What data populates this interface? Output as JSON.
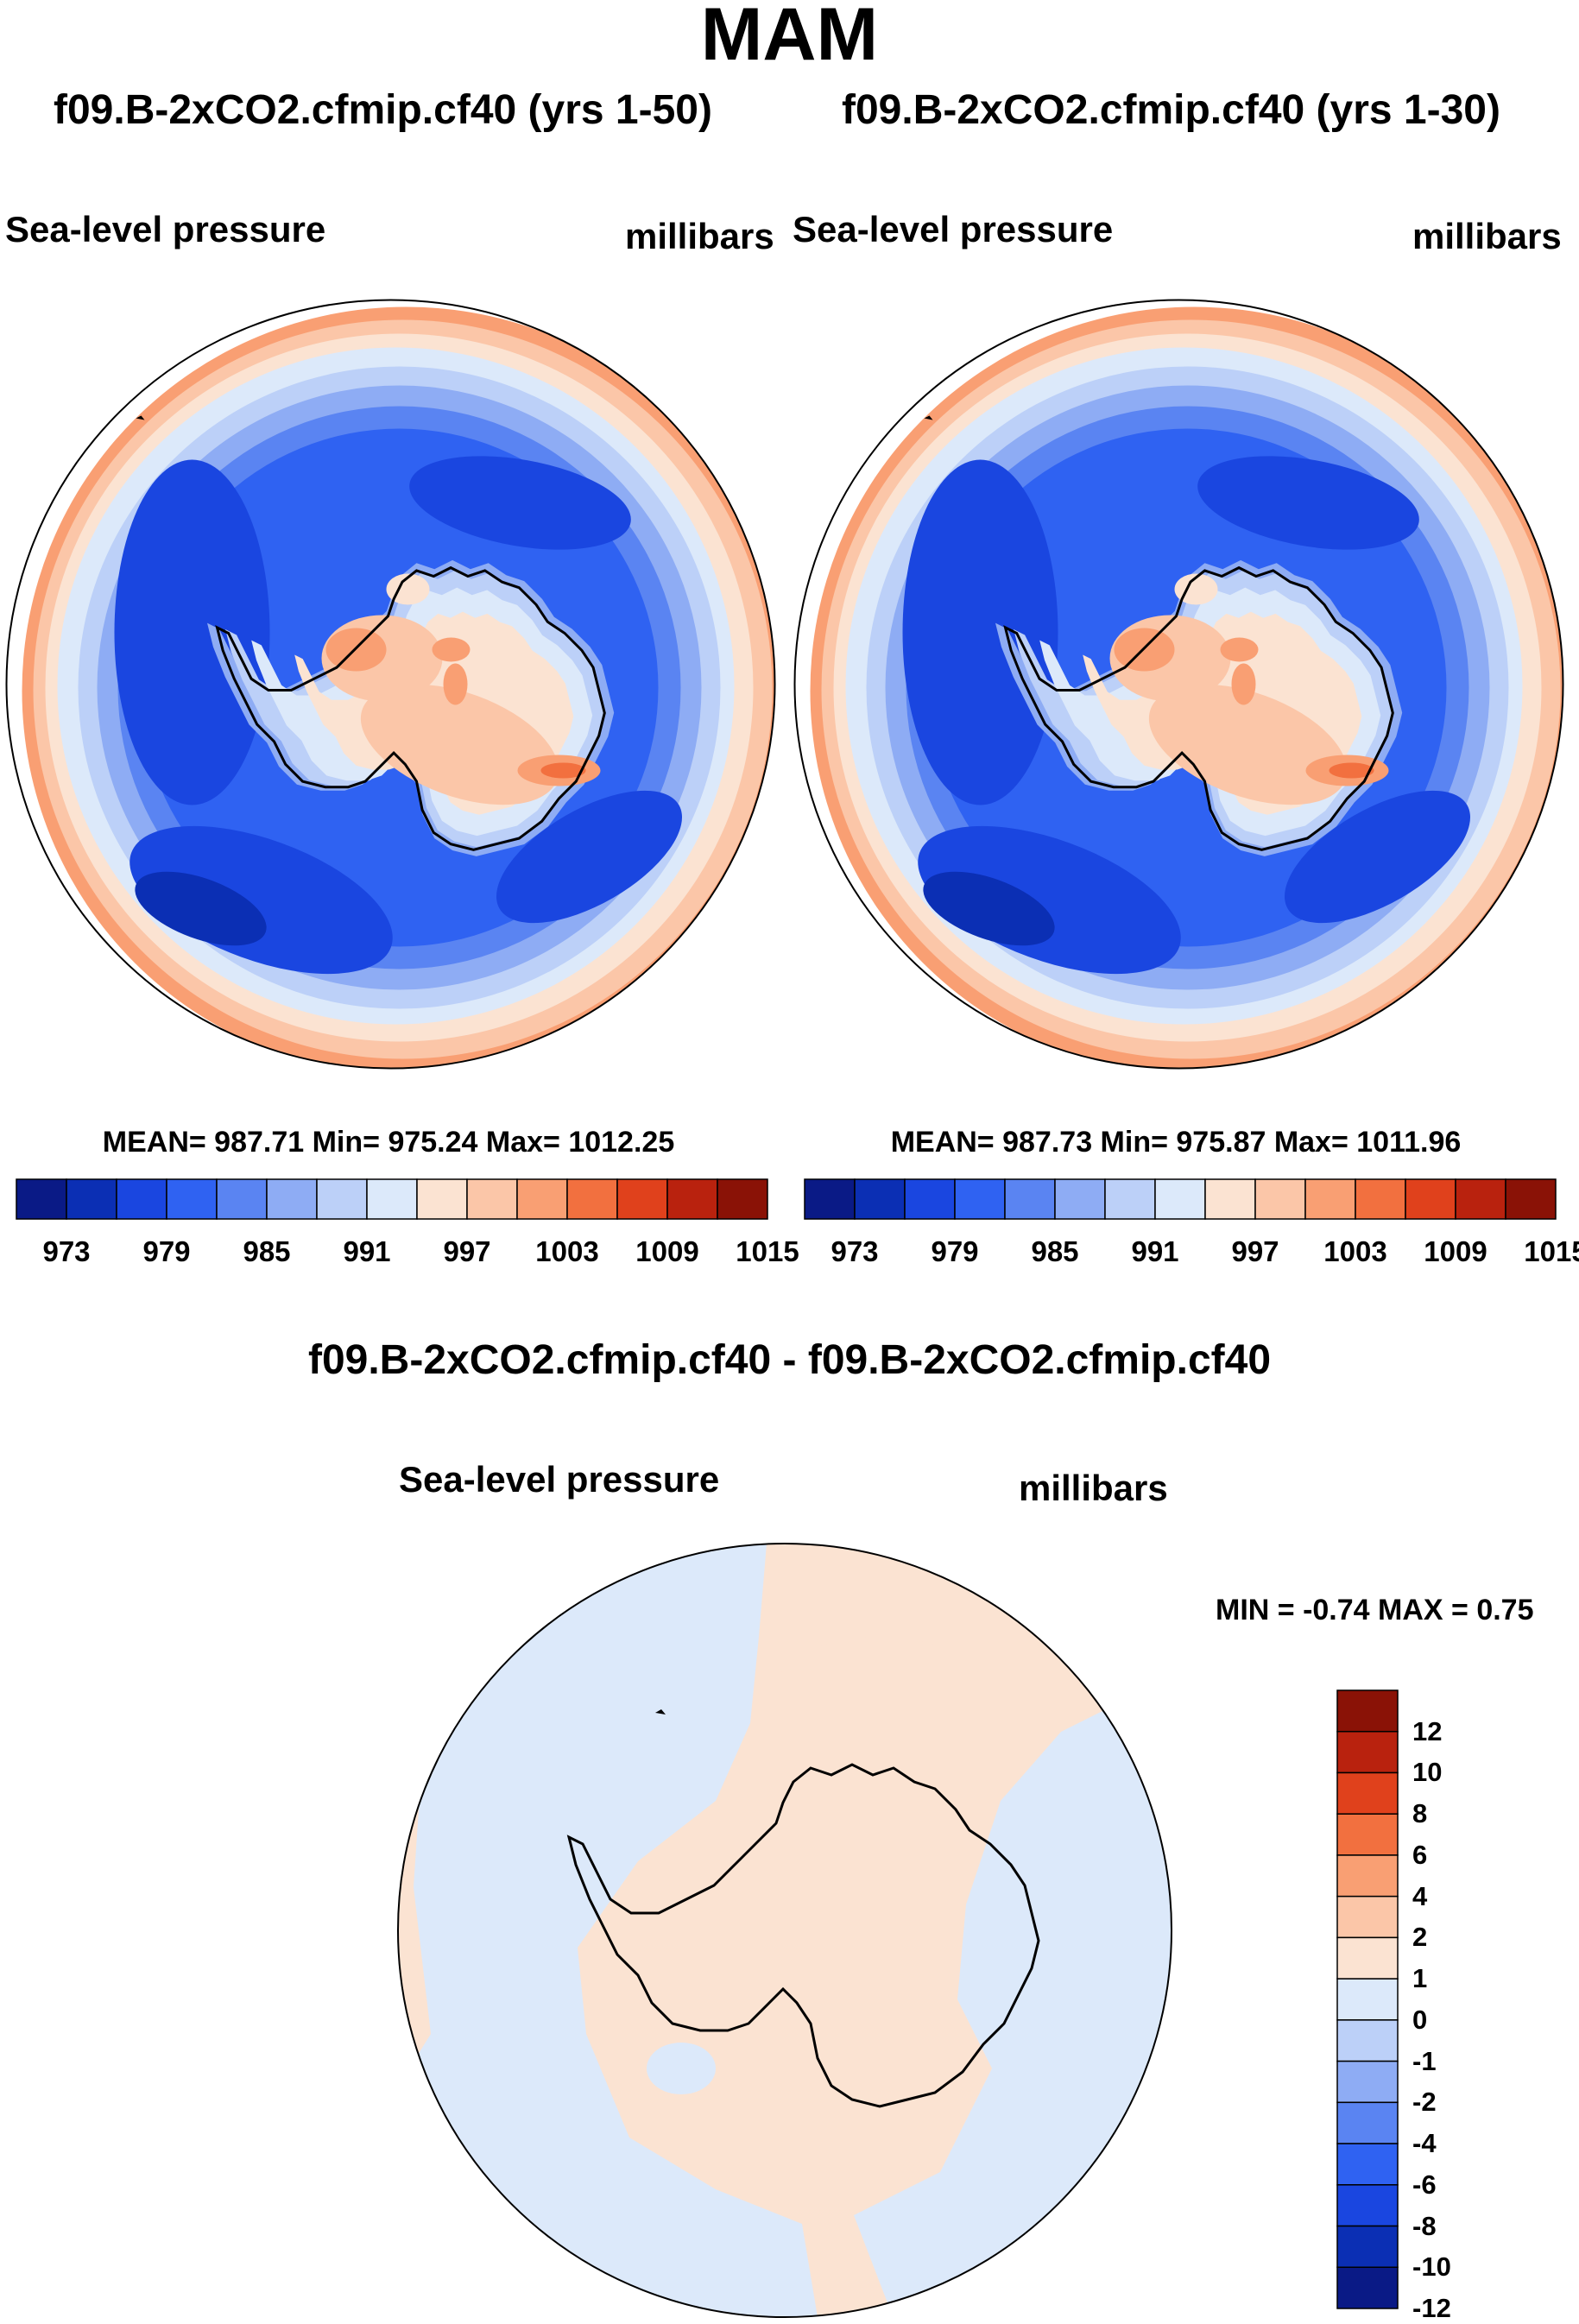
{
  "figure": {
    "title": "MAM"
  },
  "palette": {
    "abs_colors": [
      "#0a1a86",
      "#0b2fb4",
      "#1a46e0",
      "#2f62f2",
      "#5a84f2",
      "#8eacf4",
      "#bcd0f8",
      "#dce9fa",
      "#fbe3d2",
      "#fbc6a8",
      "#f99f73",
      "#f2703f",
      "#e0411c",
      "#b9220e",
      "#8a1206"
    ],
    "diff_colors": [
      "#0a1a86",
      "#0b2fb4",
      "#1a46e0",
      "#2f62f2",
      "#5a84f2",
      "#8eacf4",
      "#bcd0f8",
      "#dce9fa",
      "#fbe3d2",
      "#fbc6a8",
      "#f99f73",
      "#f2703f",
      "#e0411c",
      "#b9220e",
      "#8a1206"
    ],
    "coast": "#000000"
  },
  "panels": {
    "left": {
      "case_title": "f09.B-2xCO2.cfmip.cf40 (yrs 1-50)",
      "variable": "Sea-level pressure",
      "units": "millibars",
      "stats": "MEAN= 987.71  Min= 975.24  Max= 1012.25"
    },
    "right": {
      "case_title": "f09.B-2xCO2.cfmip.cf40 (yrs 1-30)",
      "variable": "Sea-level pressure",
      "units": "millibars",
      "stats": "MEAN= 987.73  Min= 975.87  Max= 1011.96"
    },
    "diff": {
      "case_title": "f09.B-2xCO2.cfmip.cf40 - f09.B-2xCO2.cfmip.cf40",
      "variable": "Sea-level pressure",
      "units": "millibars",
      "minmax": "MIN =  -0.74 MAX =   0.75"
    }
  },
  "chart_data": [
    {
      "type": "heatmap",
      "title": "f09.B-2xCO2.cfmip.cf40 (yrs 1-50)",
      "projection": "south polar stereographic",
      "variable": "Sea-level pressure",
      "units": "millibars",
      "mean": 987.71,
      "min": 975.24,
      "max": 1012.25,
      "colorbar_levels": [
        973,
        976,
        979,
        982,
        985,
        988,
        991,
        994,
        997,
        1000,
        1003,
        1006,
        1009,
        1012,
        1015
      ],
      "colorbar_tick_labels": [
        "973",
        "979",
        "985",
        "991",
        "997",
        "1003",
        "1009",
        "1015"
      ]
    },
    {
      "type": "heatmap",
      "title": "f09.B-2xCO2.cfmip.cf40 (yrs 1-30)",
      "projection": "south polar stereographic",
      "variable": "Sea-level pressure",
      "units": "millibars",
      "mean": 987.73,
      "min": 975.87,
      "max": 1011.96,
      "colorbar_levels": [
        973,
        976,
        979,
        982,
        985,
        988,
        991,
        994,
        997,
        1000,
        1003,
        1006,
        1009,
        1012,
        1015
      ],
      "colorbar_tick_labels": [
        "973",
        "979",
        "985",
        "991",
        "997",
        "1003",
        "1009",
        "1015"
      ]
    },
    {
      "type": "heatmap",
      "title": "f09.B-2xCO2.cfmip.cf40 - f09.B-2xCO2.cfmip.cf40",
      "projection": "south polar stereographic",
      "variable": "Sea-level pressure",
      "units": "millibars",
      "min": -0.74,
      "max": 0.75,
      "colorbar_tick_labels": [
        "12",
        "10",
        "8",
        "6",
        "4",
        "2",
        "1",
        "0",
        "-1",
        "-2",
        "-4",
        "-6",
        "-8",
        "-10",
        "-12"
      ]
    }
  ]
}
